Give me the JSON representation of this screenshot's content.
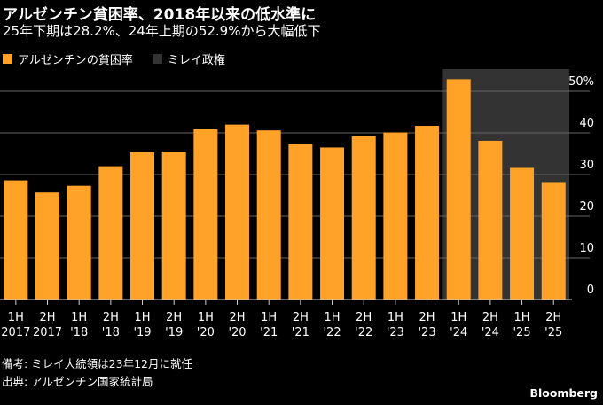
{
  "title": "アルゼンチン貧困率、2018年以来の低水準に",
  "subtitle": "25年下期は28.2%、24年上期の52.9%から大幅低下",
  "legend": [
    {
      "label": "アルゼンチンの貧困率",
      "color": "#ffa227"
    },
    {
      "label": "ミレイ政権",
      "color": "#333333"
    }
  ],
  "notes": [
    "備考: ミレイ大統領は23年12月に就任",
    "出典: アルゼンチン国家統計局"
  ],
  "brand": "Bloomberg",
  "chart_data": {
    "type": "bar",
    "categories": [
      [
        "1H",
        "2017"
      ],
      [
        "2H",
        "2017"
      ],
      [
        "1H",
        "'18"
      ],
      [
        "2H",
        "'18"
      ],
      [
        "1H",
        "'19"
      ],
      [
        "2H",
        "'19"
      ],
      [
        "1H",
        "'20"
      ],
      [
        "2H",
        "'20"
      ],
      [
        "1H",
        "'21"
      ],
      [
        "2H",
        "'21"
      ],
      [
        "1H",
        "'22"
      ],
      [
        "2H",
        "'22"
      ],
      [
        "1H",
        "'23"
      ],
      [
        "2H",
        "'23"
      ],
      [
        "1H",
        "'24"
      ],
      [
        "2H",
        "'24"
      ],
      [
        "1H",
        "'25"
      ],
      [
        "2H",
        "'25"
      ]
    ],
    "values": [
      28.6,
      25.7,
      27.3,
      32.0,
      35.4,
      35.5,
      40.9,
      42.0,
      40.6,
      37.3,
      36.5,
      39.2,
      40.1,
      41.7,
      52.9,
      38.1,
      31.6,
      28.2
    ],
    "series_name": "アルゼンチンの貧困率",
    "ylim": [
      0,
      55
    ],
    "yticks": [
      0,
      10,
      20,
      30,
      40,
      50
    ],
    "ytick_labels": [
      "0",
      "10",
      "20",
      "30",
      "40",
      "50%"
    ],
    "shaded_region": {
      "label": "ミレイ政権",
      "from_category_index": 14,
      "to_category_index": 17,
      "color": "#333333"
    },
    "bar_color": "#ffa227",
    "grid": true
  }
}
